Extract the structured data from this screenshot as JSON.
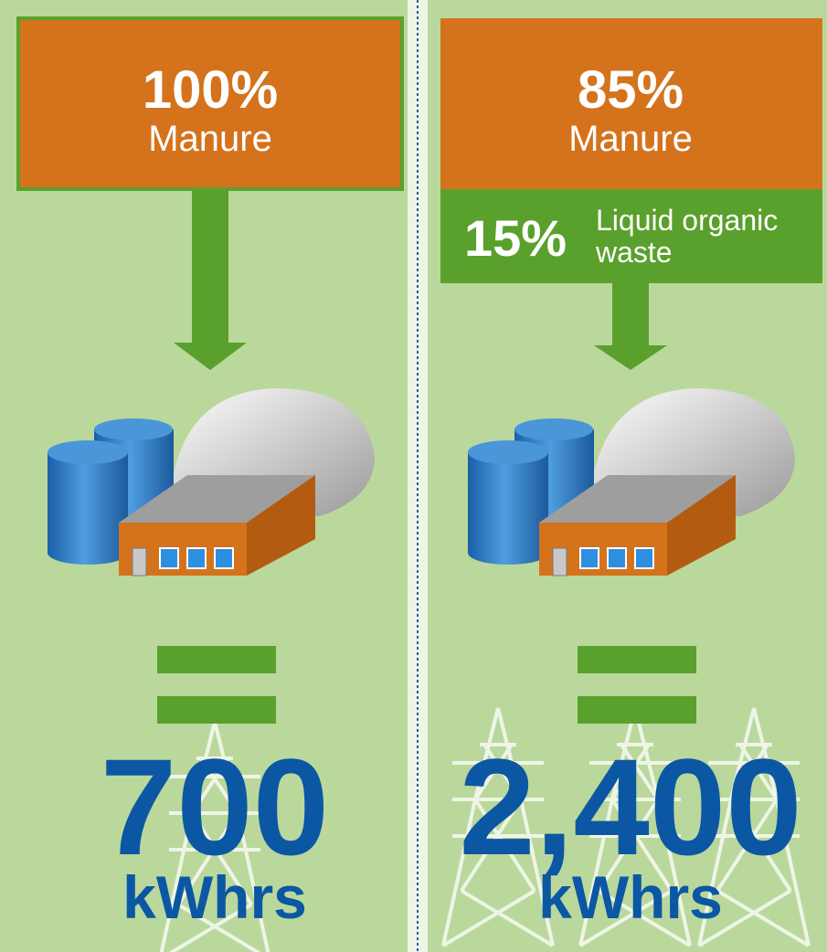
{
  "panels": [
    {
      "inputs": [
        {
          "share": "100%",
          "label": "Manure"
        }
      ],
      "output": "700",
      "unit": "kWhrs"
    },
    {
      "inputs": [
        {
          "share": "85%",
          "label": "Manure"
        },
        {
          "share": "15%",
          "label_lines": [
            "Liquid organic",
            "waste"
          ]
        }
      ],
      "output": "2,400",
      "unit": "kWhrs"
    }
  ]
}
